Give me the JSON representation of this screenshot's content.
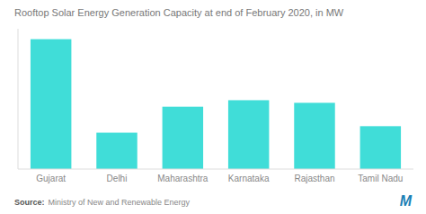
{
  "chart_data": {
    "type": "bar",
    "title": "Rooftop Solar Energy Generation Capacity at end of February 2020, in MW",
    "categories": [
      "Gujarat",
      "Delhi",
      "Maharashtra",
      "Karnataka",
      "Rajasthan",
      "Tamil Nadu"
    ],
    "values": [
      1000,
      280,
      480,
      530,
      510,
      330
    ],
    "color": "#40DDD8",
    "ylim": [
      0,
      1080
    ],
    "grid": false,
    "tick_labels": "x",
    "source_label": "Source:",
    "source": "Ministry of New and Renewable Energy",
    "logo": "M"
  }
}
